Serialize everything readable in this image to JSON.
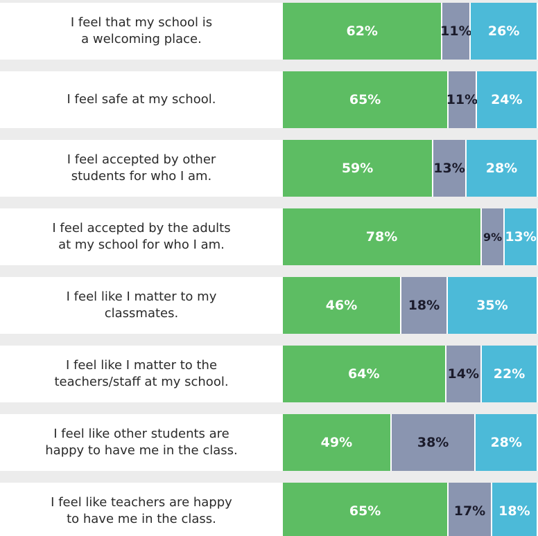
{
  "chart_data": {
    "type": "bar",
    "orientation": "horizontal",
    "stacked": true,
    "categories": [
      "I feel that my school is\na welcoming place.",
      "I feel safe at my school.",
      "I feel accepted by other\nstudents for who I am.",
      "I feel accepted by the adults\nat my school for who I am.",
      "I feel like I matter to my\nclassmates.",
      "I feel like I matter to the\nteachers/staff at my school.",
      "I feel like other students are\nhappy to have me in the class.",
      "I feel like teachers are happy\nto have me in the class."
    ],
    "series": [
      {
        "color": "#5dbd63",
        "values": [
          62,
          65,
          59,
          78,
          46,
          64,
          49,
          65
        ],
        "value_labels": [
          "62%",
          "65%",
          "59%",
          "78%",
          "46%",
          "64%",
          "49%",
          "65%"
        ]
      },
      {
        "color": "#8a95b0",
        "values": [
          11,
          11,
          13,
          9,
          18,
          14,
          38,
          17
        ],
        "value_labels": [
          "11%",
          "11%",
          "13%",
          "9%",
          "18%",
          "14%",
          "38%",
          "17%"
        ]
      },
      {
        "color": "#4cbad8",
        "values": [
          26,
          24,
          28,
          13,
          35,
          22,
          28,
          18
        ],
        "value_labels": [
          "26%",
          "24%",
          "28%",
          "13%",
          "35%",
          "22%",
          "28%",
          "18%"
        ]
      }
    ]
  }
}
